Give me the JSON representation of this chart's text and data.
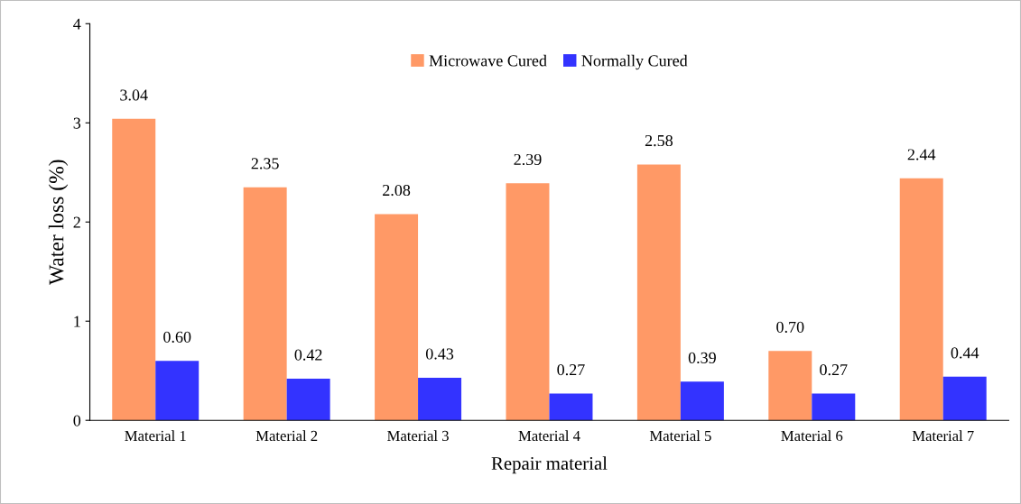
{
  "chart_data": {
    "type": "bar",
    "xlabel": "Repair material",
    "ylabel": "Water loss (%)",
    "categories": [
      "Material 1",
      "Material 2",
      "Material 3",
      "Material 4",
      "Material 5",
      "Material 6",
      "Material 7"
    ],
    "series": [
      {
        "name": "Microwave Cured",
        "color": "#ff9966",
        "values": [
          3.04,
          2.35,
          2.08,
          2.39,
          2.58,
          0.7,
          2.44
        ],
        "value_labels": [
          "3.04",
          "2.35",
          "2.08",
          "2.39",
          "2.58",
          "0.70",
          "2.44"
        ]
      },
      {
        "name": "Normally Cured",
        "color": "#3333ff",
        "values": [
          0.6,
          0.42,
          0.43,
          0.27,
          0.39,
          0.27,
          0.44
        ],
        "value_labels": [
          "0.60",
          "0.42",
          "0.43",
          "0.27",
          "0.39",
          "0.27",
          "0.44"
        ]
      }
    ],
    "ylim": [
      0,
      4
    ],
    "yticks": [
      0,
      1,
      2,
      3,
      4
    ],
    "grid": false,
    "legend": "top"
  }
}
